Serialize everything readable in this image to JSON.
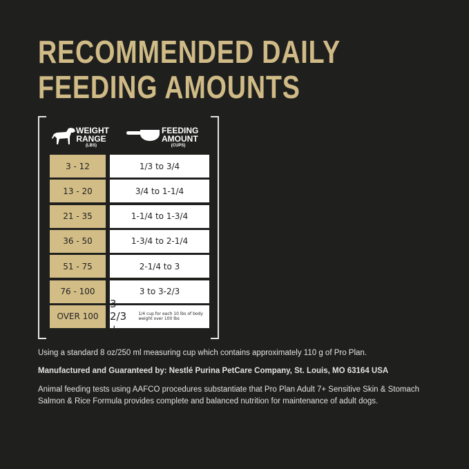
{
  "title": {
    "line1": "RECOMMENDED DAILY",
    "line2": "FEEDING AMOUNTS"
  },
  "table": {
    "weight_header": "WEIGHT RANGE",
    "weight_unit": "(LBS)",
    "amount_header": "FEEDING AMOUNT",
    "amount_unit": "(CUPS)",
    "rows": [
      {
        "weight": "3 - 12",
        "amount": "1/3 to 3/4"
      },
      {
        "weight": "13 - 20",
        "amount": "3/4 to 1-1/4"
      },
      {
        "weight": "21 - 35",
        "amount": "1-1/4 to 1-3/4"
      },
      {
        "weight": "36 - 50",
        "amount": "1-3/4 to 2-1/4"
      },
      {
        "weight": "51 - 75",
        "amount": "2-1/4 to 3"
      },
      {
        "weight": "76 - 100",
        "amount": "3 to 3-2/3"
      },
      {
        "weight": "OVER 100",
        "amount": "3-2/3 +",
        "note": "1/4 cup for each 10 lbs of body weight over 100 lbs"
      }
    ]
  },
  "text": {
    "measure": "Using a standard 8 oz/250 ml measuring cup which contains approximately 110 g of Pro Plan.",
    "manufacturer": "Manufactured and Guaranteed by: Nestlé Purina PetCare Company, St. Louis, MO 63164 USA",
    "aafco": "Animal feeding tests using AAFCO procedures substantiate that Pro Plan Adult 7+ Sensitive Skin & Stomach Salmon & Rice Formula provides complete and balanced nutrition for maintenance of adult dogs."
  }
}
